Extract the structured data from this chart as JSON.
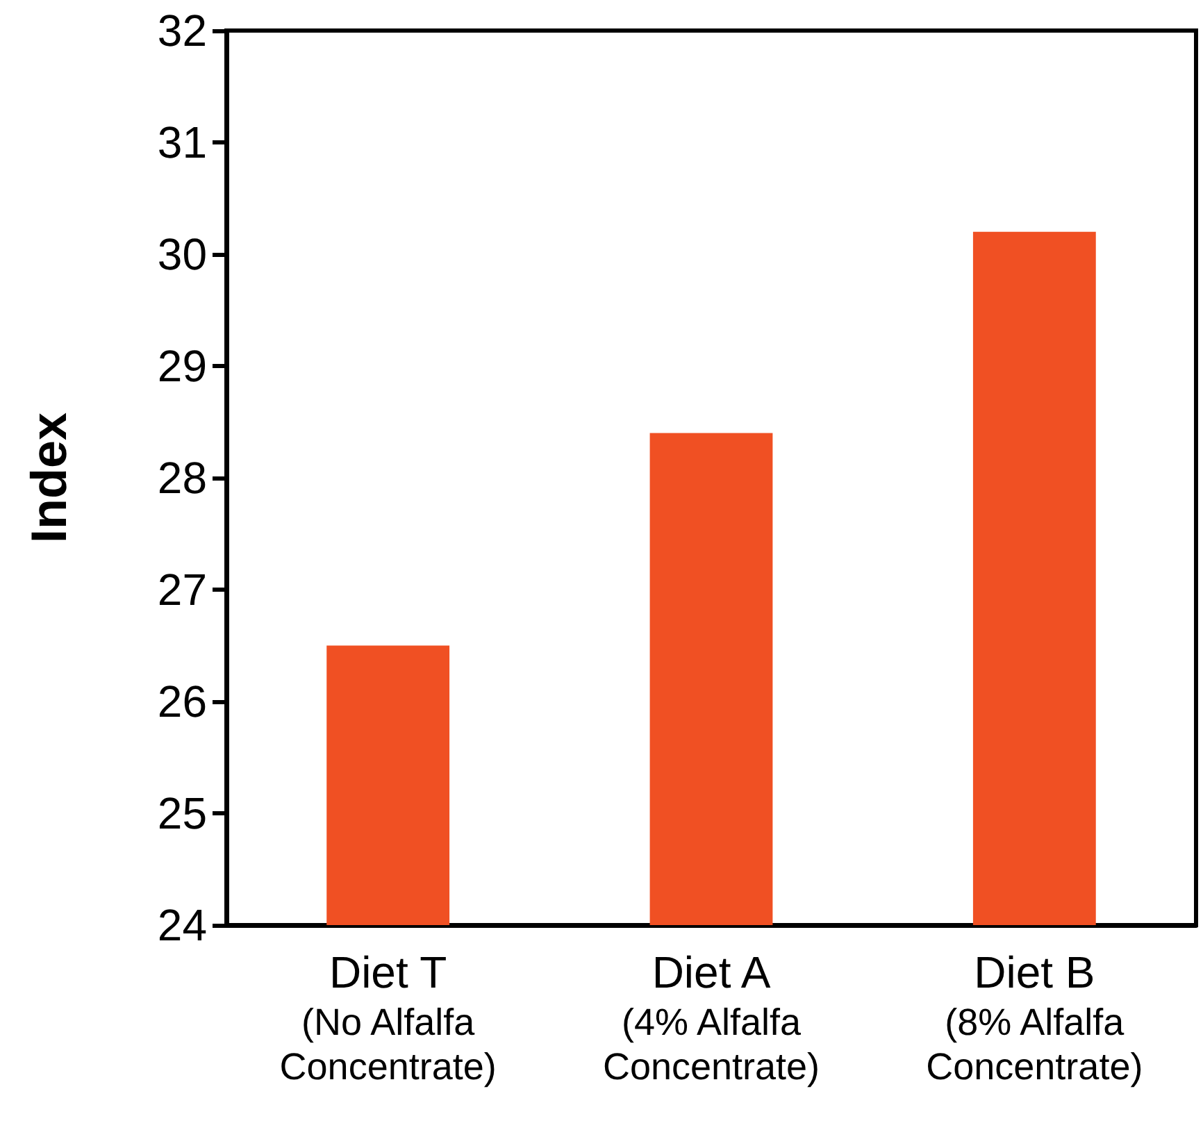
{
  "chart_data": {
    "type": "bar",
    "ylabel": "Index",
    "categories": [
      "Diet T\n(No Alfalfa\nConcentrate)",
      "Diet A\n(4% Alfalfa\nConcentrate)",
      "Diet B\n(8% Alfalfa\nConcentrate)"
    ],
    "values": [
      26.5,
      28.4,
      30.2
    ],
    "color": "#f05023",
    "ylim": [
      24,
      32
    ],
    "yticks": [
      24,
      25,
      26,
      27,
      28,
      29,
      30,
      31,
      32
    ]
  }
}
